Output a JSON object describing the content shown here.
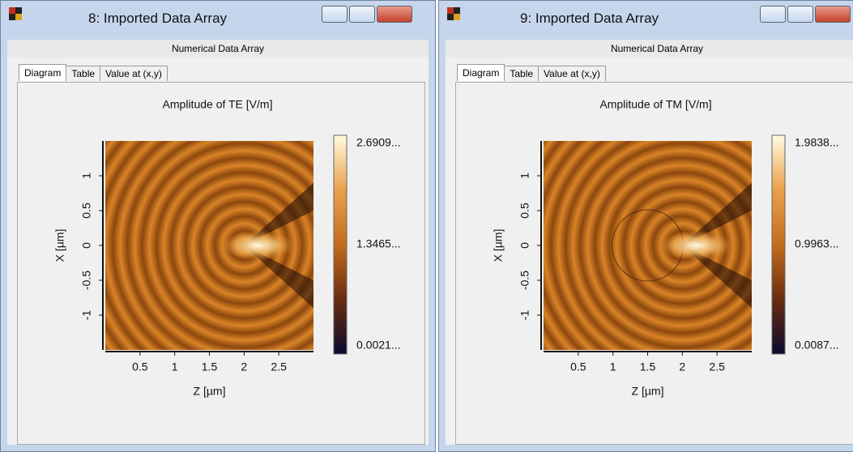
{
  "windows": [
    {
      "title": "8: Imported Data Array",
      "subtitle": "Numerical Data Array",
      "tabs": [
        "Diagram",
        "Table",
        "Value at (x,y)"
      ],
      "plot": {
        "title": "Amplitude of TE  [V/m]",
        "xlabel": "Z [µm]",
        "ylabel": "X [µm]",
        "xlim": [
          0,
          3
        ],
        "xticks": [
          0.5,
          1,
          1.5,
          2,
          2.5
        ],
        "ylim": [
          -1.5,
          1.5
        ],
        "yticks": [
          -1,
          -0.5,
          0,
          0.5,
          1
        ],
        "colorbar_labels": [
          "2.6909...",
          "1.3465...",
          "0.0021..."
        ]
      }
    },
    {
      "title": "9: Imported Data Array",
      "subtitle": "Numerical Data Array",
      "tabs": [
        "Diagram",
        "Table",
        "Value at (x,y)"
      ],
      "plot": {
        "title": "Amplitude of TM  [V/m]",
        "xlabel": "Z [µm]",
        "ylabel": "X [µm]",
        "xlim": [
          0,
          3
        ],
        "xticks": [
          0.5,
          1,
          1.5,
          2,
          2.5
        ],
        "ylim": [
          -1.5,
          1.5
        ],
        "yticks": [
          -1,
          -0.5,
          0,
          0.5,
          1
        ],
        "colorbar_labels": [
          "1.9838...",
          "0.9963...",
          "0.0087..."
        ]
      }
    }
  ]
}
